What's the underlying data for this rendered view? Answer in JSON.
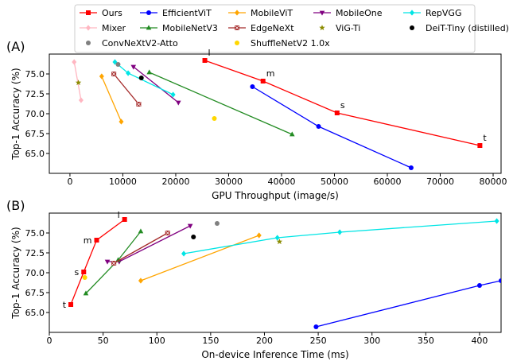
{
  "legend": {
    "entries": [
      {
        "name": "Ours",
        "color": "#ff0000",
        "marker": "square",
        "line": true
      },
      {
        "name": "EfficientViT",
        "color": "#0000ff",
        "marker": "circle",
        "line": true
      },
      {
        "name": "MobileViT",
        "color": "#ffa500",
        "marker": "diamond",
        "line": true
      },
      {
        "name": "MobileOne",
        "color": "#800080",
        "marker": "triangle-down",
        "line": true
      },
      {
        "name": "RepVGG",
        "color": "#00e5e5",
        "marker": "diamond",
        "line": true
      },
      {
        "name": "Mixer",
        "color": "#ffb6c1",
        "marker": "diamond",
        "line": true
      },
      {
        "name": "MobileNetV3",
        "color": "#228b22",
        "marker": "triangle-up",
        "line": true
      },
      {
        "name": "EdgeNeXt",
        "color": "#a52a2a",
        "marker": "square-x",
        "line": true
      },
      {
        "name": "ViG-Ti",
        "color": "#8b8b00",
        "marker": "star",
        "line": false
      },
      {
        "name": "DeiT-Tiny (distilled)",
        "color": "#000000",
        "marker": "circle",
        "line": false
      },
      {
        "name": "ConvNeXtV2-Atto",
        "color": "#808080",
        "marker": "circle",
        "line": false
      },
      {
        "name": "ShuffleNetV2 1.0x",
        "color": "#ffd700",
        "marker": "circle",
        "line": false
      }
    ]
  },
  "chart_data": [
    {
      "panel_label": "(A)",
      "type": "line",
      "xlabel": "GPU Throughput (image/s)",
      "ylabel": "Top-1 Accuracy (%)",
      "xlim": [
        -3900,
        81500
      ],
      "ylim": [
        62.5,
        77.5
      ],
      "xticks": [
        0,
        10000,
        20000,
        30000,
        40000,
        50000,
        60000,
        70000,
        80000
      ],
      "yticks": [
        65.0,
        67.5,
        70.0,
        72.5,
        75.0
      ],
      "series": [
        {
          "name": "Ours",
          "x": [
            25500,
            36500,
            50500,
            77500
          ],
          "y": [
            76.7,
            74.1,
            70.1,
            66.0
          ],
          "labels": [
            "l",
            "m",
            "s",
            "t"
          ]
        },
        {
          "name": "EfficientViT",
          "x": [
            34500,
            47000,
            64500
          ],
          "y": [
            73.4,
            68.4,
            63.2
          ]
        },
        {
          "name": "MobileViT",
          "x": [
            6000,
            9700
          ],
          "y": [
            74.7,
            69.0
          ]
        },
        {
          "name": "MobileOne",
          "x": [
            12000,
            20500
          ],
          "y": [
            75.9,
            71.4
          ]
        },
        {
          "name": "RepVGG",
          "x": [
            8500,
            11000,
            19500
          ],
          "y": [
            76.5,
            75.1,
            72.4
          ]
        },
        {
          "name": "Mixer",
          "x": [
            800,
            2100
          ],
          "y": [
            76.5,
            71.7
          ]
        },
        {
          "name": "MobileNetV3",
          "x": [
            15000,
            42000
          ],
          "y": [
            75.2,
            67.4
          ]
        },
        {
          "name": "EdgeNeXt",
          "x": [
            8300,
            13000
          ],
          "y": [
            75.0,
            71.2
          ]
        },
        {
          "name": "ViG-Ti",
          "x": [
            1600
          ],
          "y": [
            73.9
          ]
        },
        {
          "name": "DeiT-Tiny (distilled)",
          "x": [
            13500
          ],
          "y": [
            74.5
          ]
        },
        {
          "name": "ConvNeXtV2-Atto",
          "x": [
            9100
          ],
          "y": [
            76.2
          ]
        },
        {
          "name": "ShuffleNetV2 1.0x",
          "x": [
            27300
          ],
          "y": [
            69.4
          ]
        }
      ]
    },
    {
      "panel_label": "(B)",
      "type": "line",
      "xlabel": "On-device Inference Time (ms)",
      "ylabel": "Top-1 Accuracy (%)",
      "xlim": [
        0,
        420
      ],
      "ylim": [
        62.5,
        77.5
      ],
      "xticks": [
        0,
        50,
        100,
        150,
        200,
        250,
        300,
        350,
        400
      ],
      "yticks": [
        65.0,
        67.5,
        70.0,
        72.5,
        75.0
      ],
      "series": [
        {
          "name": "Ours",
          "x": [
            20,
            32,
            44,
            70
          ],
          "y": [
            66.0,
            70.1,
            74.1,
            76.7
          ],
          "labels": [
            "t",
            "s",
            "m",
            "l"
          ]
        },
        {
          "name": "EfficientViT",
          "x": [
            248,
            400,
            420
          ],
          "y": [
            63.2,
            68.4,
            69.0
          ]
        },
        {
          "name": "MobileViT",
          "x": [
            85,
            195
          ],
          "y": [
            69.0,
            74.7
          ]
        },
        {
          "name": "MobileOne",
          "x": [
            54,
            65,
            131
          ],
          "y": [
            71.4,
            71.4,
            75.9
          ]
        },
        {
          "name": "RepVGG",
          "x": [
            125,
            212,
            270,
            416
          ],
          "y": [
            72.4,
            74.4,
            75.1,
            76.5
          ]
        },
        {
          "name": "MobileNetV3",
          "x": [
            34,
            64,
            85
          ],
          "y": [
            67.4,
            71.6,
            75.2
          ]
        },
        {
          "name": "EdgeNeXt",
          "x": [
            60,
            110
          ],
          "y": [
            71.2,
            75.0
          ]
        },
        {
          "name": "ViG-Ti",
          "x": [
            214
          ],
          "y": [
            73.9
          ]
        },
        {
          "name": "DeiT-Tiny (distilled)",
          "x": [
            134
          ],
          "y": [
            74.5
          ]
        },
        {
          "name": "ConvNeXtV2-Atto",
          "x": [
            156
          ],
          "y": [
            76.2
          ]
        },
        {
          "name": "ShuffleNetV2 1.0x",
          "x": [
            33
          ],
          "y": [
            69.4
          ]
        }
      ]
    }
  ]
}
